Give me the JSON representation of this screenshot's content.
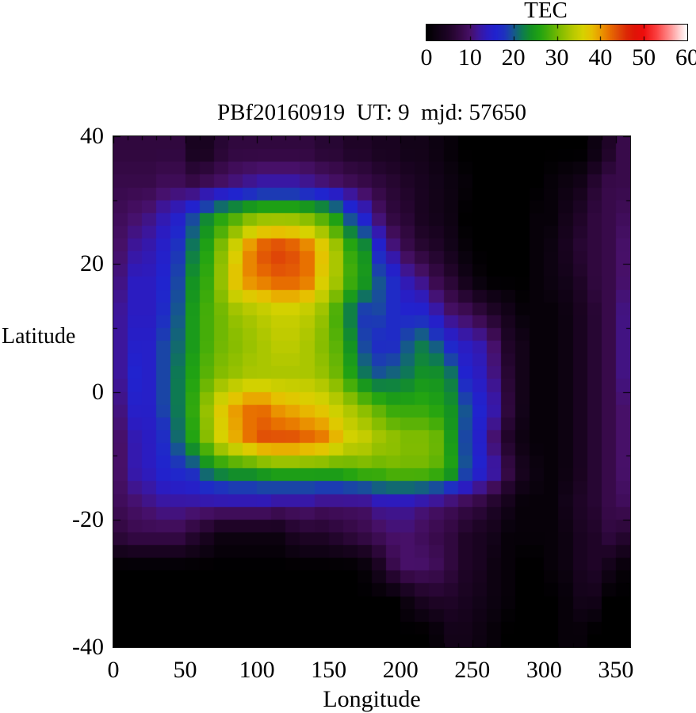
{
  "colorbar": {
    "title": "TEC",
    "tick_labels": [
      "0",
      "10",
      "20",
      "30",
      "40",
      "50",
      "60"
    ],
    "tick_values": [
      0,
      10,
      20,
      30,
      40,
      50,
      60
    ],
    "min": 0,
    "max": 60
  },
  "plot": {
    "title": "PBf20160919  UT: 9  mjd: 57650",
    "xlabel": "Longitude",
    "ylabel": "Latitude",
    "x_tick_labels": [
      "0",
      "50",
      "100",
      "150",
      "200",
      "250",
      "300",
      "350"
    ],
    "y_tick_labels": [
      "40",
      "20",
      "0",
      "-20",
      "-40"
    ]
  },
  "chart_data": {
    "type": "heatmap",
    "title": "PBf20160919  UT: 9  mjd: 57650",
    "xlabel": "Longitude",
    "ylabel": "Latitude",
    "colorbar_label": "TEC",
    "xlim": [
      0,
      360
    ],
    "ylim": [
      -40,
      40
    ],
    "zlim": [
      0,
      60
    ],
    "x_major_ticks": [
      0,
      50,
      100,
      150,
      200,
      250,
      300,
      350
    ],
    "x_minor_step": 10,
    "y_major_ticks": [
      40,
      20,
      0,
      -20,
      -40
    ],
    "y_minor_step": 10,
    "grid": false,
    "lon_bin_width_deg": 10,
    "lon_centers": [
      5,
      15,
      25,
      35,
      45,
      55,
      65,
      75,
      85,
      95,
      105,
      115,
      125,
      135,
      145,
      155,
      165,
      175,
      185,
      195,
      205,
      215,
      225,
      235,
      245,
      255,
      265,
      275,
      285,
      295,
      305,
      315,
      325,
      335,
      345,
      355
    ],
    "lat_centers": [
      37.5,
      32.5,
      27.5,
      22.5,
      17.5,
      12.5,
      7.5,
      2.5,
      -2.5,
      -7.5,
      -12.5,
      -17.5,
      -22.5,
      -27.5,
      -32.5,
      -37.5
    ],
    "values_tec": [
      [
        7,
        7,
        7,
        7,
        7,
        4,
        4,
        6,
        7,
        7,
        7,
        7,
        7,
        7,
        6,
        6,
        5,
        5,
        4,
        4,
        3,
        3,
        2,
        1,
        0,
        0,
        0,
        0,
        0,
        0,
        0,
        0,
        0,
        2,
        5,
        8
      ],
      [
        8,
        8,
        8,
        9,
        9,
        8,
        9,
        10,
        11,
        12,
        13,
        13,
        13,
        12,
        11,
        10,
        9,
        8,
        7,
        6,
        5,
        4,
        3,
        2,
        1,
        0,
        0,
        0,
        0,
        0,
        1,
        2,
        3,
        6,
        8,
        8
      ],
      [
        9,
        10,
        11,
        13,
        15,
        19,
        23,
        26,
        28,
        30,
        31,
        31,
        31,
        30,
        28,
        25,
        19,
        15,
        10,
        7,
        6,
        4,
        3,
        2,
        0,
        0,
        0,
        0,
        0,
        1,
        1,
        3,
        5,
        7,
        8,
        9
      ],
      [
        10,
        12,
        13,
        15,
        18,
        22,
        26,
        31,
        36,
        41,
        44,
        45,
        44,
        42,
        38,
        33,
        27,
        24,
        16,
        11,
        8,
        6,
        5,
        3,
        1,
        0,
        0,
        0,
        0,
        1,
        2,
        4,
        6,
        7,
        8,
        10
      ],
      [
        11,
        14,
        14,
        16,
        19,
        24,
        27,
        32,
        38,
        41,
        42,
        43,
        43,
        42,
        37,
        33,
        28,
        25,
        20,
        17,
        13,
        11,
        8,
        6,
        3,
        1,
        0,
        0,
        0,
        1,
        2,
        3,
        5,
        7,
        8,
        10
      ],
      [
        12,
        14,
        14,
        17,
        20,
        25,
        28,
        30,
        32,
        33,
        34,
        35,
        35,
        34,
        32,
        28,
        22,
        18,
        19,
        17,
        16,
        16,
        13,
        10,
        9,
        7,
        5,
        3,
        1,
        1,
        1,
        2,
        4,
        6,
        8,
        11
      ],
      [
        12,
        15,
        15,
        19,
        21,
        25,
        28,
        30,
        31,
        32,
        33,
        34,
        34,
        33,
        31,
        29,
        24,
        19,
        17,
        17,
        20,
        22,
        20,
        16,
        14,
        13,
        10,
        5,
        3,
        1,
        1,
        2,
        4,
        6,
        8,
        11
      ],
      [
        12,
        16,
        15,
        19,
        22,
        26,
        29,
        31,
        32,
        33,
        33,
        33,
        33,
        33,
        32,
        30,
        26,
        22,
        20,
        21,
        22,
        24,
        24,
        22,
        16,
        14,
        11,
        6,
        3,
        1,
        1,
        2,
        4,
        6,
        8,
        11
      ],
      [
        11,
        15,
        15,
        19,
        22,
        27,
        32,
        37,
        40,
        42,
        42,
        40,
        39,
        38,
        37,
        35,
        33,
        31,
        29,
        27,
        27,
        27,
        26,
        24,
        20,
        16,
        13,
        7,
        3,
        1,
        1,
        2,
        4,
        6,
        8,
        10
      ],
      [
        10,
        13,
        14,
        17,
        21,
        26,
        31,
        36,
        39,
        42,
        44,
        44,
        44,
        43,
        42,
        39,
        36,
        35,
        33,
        32,
        31,
        31,
        30,
        25,
        19,
        15,
        10,
        5,
        2,
        1,
        1,
        2,
        4,
        6,
        8,
        10
      ],
      [
        10,
        13,
        14,
        16,
        17,
        18,
        22,
        24,
        25,
        25,
        26,
        27,
        27,
        27,
        27,
        27,
        28,
        29,
        29,
        30,
        30,
        30,
        29,
        26,
        20,
        16,
        13,
        8,
        4,
        2,
        1,
        2,
        4,
        6,
        8,
        10
      ],
      [
        9,
        10,
        11,
        12,
        12,
        12,
        12,
        12,
        12,
        12,
        12,
        11,
        11,
        11,
        10,
        10,
        10,
        10,
        12,
        12,
        12,
        11,
        10,
        9,
        8,
        7,
        5,
        3,
        1,
        1,
        1,
        3,
        5,
        6,
        8,
        9
      ],
      [
        7,
        8,
        8,
        8,
        8,
        6,
        4,
        2,
        2,
        2,
        2,
        2,
        4,
        5,
        5,
        6,
        7,
        8,
        9,
        10,
        10,
        9,
        8,
        7,
        5,
        4,
        3,
        1,
        1,
        1,
        1,
        2,
        4,
        5,
        7,
        6
      ],
      [
        0,
        0,
        0,
        0,
        0,
        0,
        0,
        0,
        0,
        0,
        0,
        0,
        0,
        0,
        0,
        0,
        0,
        1,
        4,
        8,
        10,
        10,
        9,
        7,
        5,
        4,
        2,
        1,
        0,
        0,
        1,
        2,
        4,
        5,
        3,
        1
      ],
      [
        0,
        0,
        0,
        0,
        0,
        0,
        0,
        0,
        0,
        0,
        0,
        0,
        0,
        0,
        0,
        0,
        0,
        0,
        0,
        0,
        2,
        4,
        5,
        5,
        4,
        3,
        2,
        1,
        0,
        0,
        0,
        1,
        3,
        3,
        0,
        0
      ],
      [
        0,
        0,
        0,
        0,
        0,
        0,
        0,
        0,
        0,
        0,
        0,
        0,
        0,
        0,
        0,
        0,
        0,
        0,
        0,
        0,
        0,
        0,
        1,
        3,
        3,
        2,
        1,
        0,
        0,
        0,
        0,
        1,
        1,
        0,
        0,
        0
      ]
    ],
    "colormap_stops": [
      [
        0,
        "#000000"
      ],
      [
        2,
        "#0d0211"
      ],
      [
        5,
        "#1f0427"
      ],
      [
        8,
        "#380a4a"
      ],
      [
        10,
        "#471068"
      ],
      [
        12,
        "#3c169c"
      ],
      [
        14,
        "#2b1cc1"
      ],
      [
        16,
        "#2023cf"
      ],
      [
        18,
        "#1e33bd"
      ],
      [
        20,
        "#16578f"
      ],
      [
        22,
        "#0e7a52"
      ],
      [
        24,
        "#149223"
      ],
      [
        26,
        "#21a312"
      ],
      [
        28,
        "#45ad09"
      ],
      [
        31,
        "#86bd00"
      ],
      [
        34,
        "#bcca00"
      ],
      [
        36,
        "#d6d200"
      ],
      [
        38,
        "#e6c000"
      ],
      [
        40,
        "#ea9b00"
      ],
      [
        42,
        "#e87100"
      ],
      [
        44,
        "#e04d07"
      ],
      [
        46,
        "#dc2a05"
      ],
      [
        48,
        "#e01407"
      ],
      [
        50,
        "#ee0d0c"
      ],
      [
        53,
        "#fb4040"
      ],
      [
        56,
        "#ff8e8e"
      ],
      [
        58,
        "#ffc8c8"
      ],
      [
        60,
        "#ffffff"
      ]
    ]
  },
  "layout_colors": {
    "background": "#ffffff",
    "text": "#000000",
    "plot_border": "#1a1a1a"
  }
}
